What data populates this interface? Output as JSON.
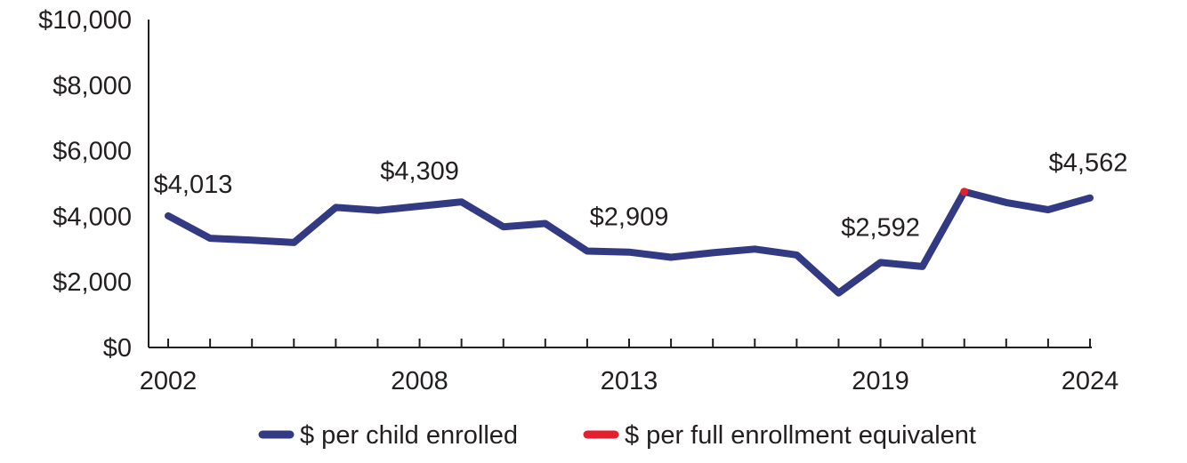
{
  "chart_data": {
    "type": "line",
    "x": [
      2002,
      2003,
      2004,
      2005,
      2006,
      2007,
      2008,
      2009,
      2010,
      2011,
      2012,
      2013,
      2014,
      2015,
      2016,
      2017,
      2018,
      2019,
      2020,
      2021,
      2022,
      2023,
      2024
    ],
    "series": [
      {
        "name": "$ per child enrolled",
        "color": "#333a84",
        "x": [
          2002,
          2003,
          2004,
          2005,
          2006,
          2007,
          2008,
          2009,
          2010,
          2011,
          2012,
          2013,
          2014,
          2015,
          2016,
          2017,
          2018,
          2019,
          2020,
          2021
        ],
        "values": [
          4013,
          3330,
          3270,
          3200,
          4270,
          4180,
          4309,
          4440,
          3680,
          3780,
          2940,
          2909,
          2750,
          2890,
          3000,
          2820,
          1660,
          2592,
          2470,
          4750
        ]
      },
      {
        "name": "$ per full enrollment equivalent",
        "color": "#e5202e",
        "x": [
          2021,
          2022,
          2023,
          2024
        ],
        "values": [
          4750,
          4420,
          4200,
          4562
        ]
      }
    ],
    "xlabel": "",
    "ylabel": "",
    "ylim": [
      0,
      10000
    ],
    "y_ticks": [
      "$0",
      "$2,000",
      "$4,000",
      "$6,000",
      "$8,000",
      "$10,000"
    ],
    "x_tick_labels": [
      "2002",
      "2008",
      "2013",
      "2019",
      "2024"
    ],
    "annotations": [
      {
        "x": 2002,
        "y": 4013,
        "text": "$4,013"
      },
      {
        "x": 2008,
        "y": 4309,
        "text": "$4,309"
      },
      {
        "x": 2013,
        "y": 2909,
        "text": "$2,909"
      },
      {
        "x": 2019,
        "y": 2592,
        "text": "$2,592"
      },
      {
        "x": 2024,
        "y": 4562,
        "text": "$4,562"
      }
    ],
    "legend_position": "bottom",
    "grid": false
  }
}
